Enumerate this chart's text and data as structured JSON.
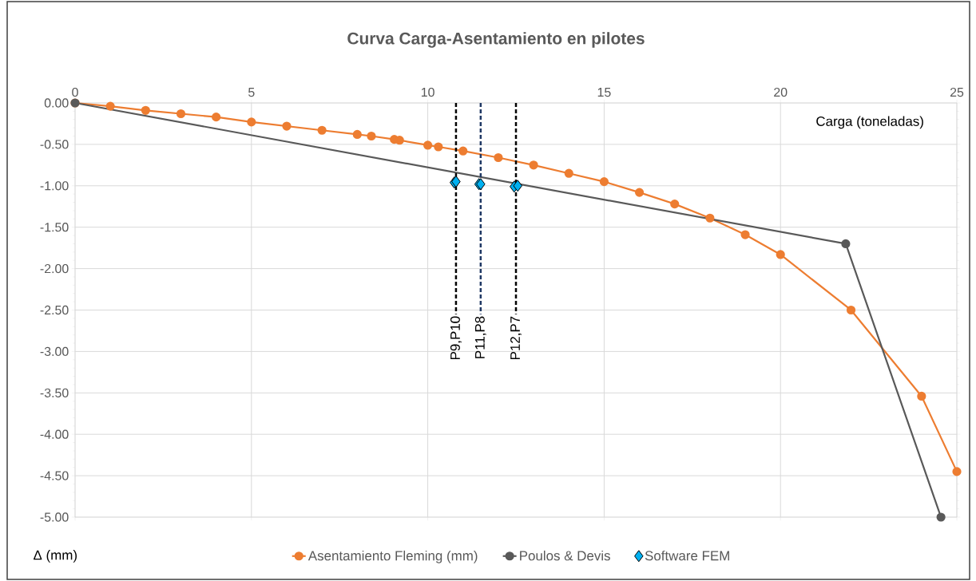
{
  "chart_data": {
    "type": "line",
    "title": "Curva Carga-Asentamiento en pilotes",
    "xlabel": "Carga (toneladas)",
    "ylabel": "Δ (mm)",
    "xlim": [
      0,
      25
    ],
    "ylim": [
      -5,
      0
    ],
    "xticks": [
      0,
      5,
      10,
      15,
      20,
      25
    ],
    "yticks": [
      {
        "value": 0,
        "label": "0.00"
      },
      {
        "value": -0.5,
        "label": "-0.50"
      },
      {
        "value": -1,
        "label": "-1.00"
      },
      {
        "value": -1.5,
        "label": "-1.50"
      },
      {
        "value": -2,
        "label": "-2.00"
      },
      {
        "value": -2.5,
        "label": "-2.50"
      },
      {
        "value": -3,
        "label": "-3.00"
      },
      {
        "value": -3.5,
        "label": "-3.50"
      },
      {
        "value": -4,
        "label": "-4.00"
      },
      {
        "value": -4.5,
        "label": "-4.50"
      },
      {
        "value": -5,
        "label": "-5.00"
      }
    ],
    "grid": true,
    "legend": "bottom",
    "series": [
      {
        "name": "Asentamiento Fleming (mm)",
        "color": "#ed7d31",
        "marker": "circle",
        "line_style": "solid",
        "x": [
          0,
          1,
          2,
          3,
          4,
          5,
          6,
          7,
          8,
          8.4,
          9.05,
          9.2,
          10,
          10.3,
          11,
          12,
          13,
          14,
          15,
          16,
          17,
          18,
          19,
          20,
          22,
          24,
          25
        ],
        "values": [
          0,
          -0.04,
          -0.09,
          -0.13,
          -0.17,
          -0.23,
          -0.28,
          -0.33,
          -0.38,
          -0.4,
          -0.44,
          -0.45,
          -0.51,
          -0.53,
          -0.58,
          -0.66,
          -0.75,
          -0.85,
          -0.95,
          -1.08,
          -1.22,
          -1.39,
          -1.59,
          -1.83,
          -2.5,
          -3.54,
          -4.45
        ]
      },
      {
        "name": "Poulos & Devis",
        "color": "#595959",
        "marker": "circle",
        "line_style": "solid",
        "x": [
          0,
          21.85,
          24.55
        ],
        "values": [
          0,
          -1.7,
          -5.0
        ]
      },
      {
        "name": "Software FEM",
        "color": "#00b0f0",
        "type": "scatter",
        "marker": "diamond",
        "x": [
          10.75,
          10.8,
          11.45,
          11.5,
          12.45,
          12.55
        ],
        "values": [
          -0.96,
          -0.95,
          -0.98,
          -0.98,
          -1.01,
          -1.0
        ]
      }
    ],
    "ref_lines": [
      {
        "axis": "x",
        "value": 10.8,
        "label": "P9,P10",
        "color": "#000000",
        "line_style": "dashed"
      },
      {
        "axis": "x",
        "value": 11.5,
        "label": "P11,P8",
        "color": "#1f3864",
        "line_style": "dashed"
      },
      {
        "axis": "x",
        "value": 12.5,
        "label": "P12,P7",
        "color": "#000000",
        "line_style": "dashed"
      }
    ]
  }
}
